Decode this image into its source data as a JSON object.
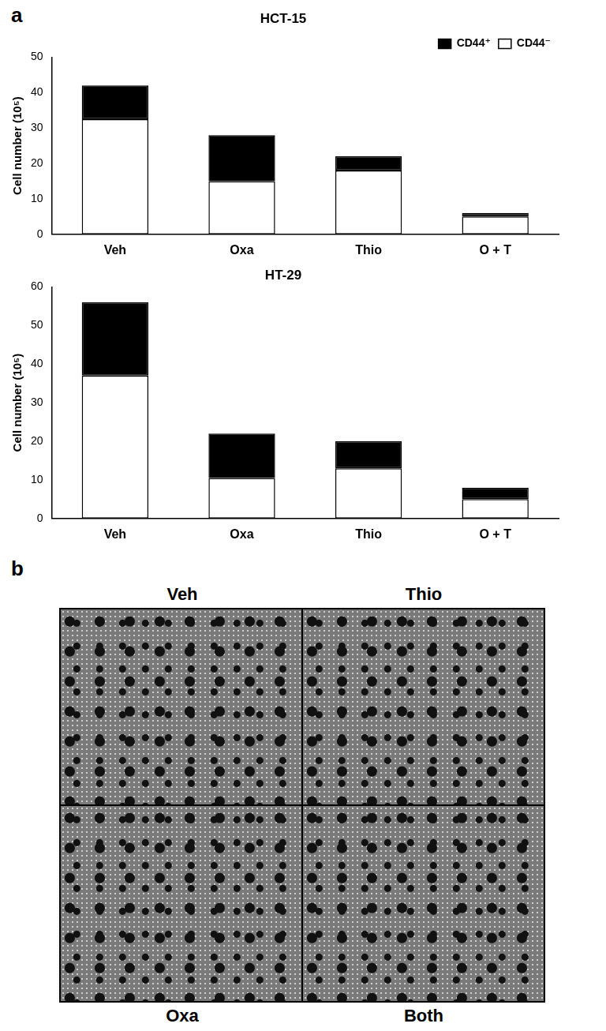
{
  "panel_labels": [
    "a",
    "b"
  ],
  "chart_data": [
    {
      "type": "bar",
      "title": "HCT-15",
      "y_label": "Cell number (10⁵)",
      "categories": [
        "Veh",
        "Oxa",
        "Thio",
        "O + T"
      ],
      "series": [
        {
          "name": "CD44⁻",
          "color": "#ffffff",
          "values": [
            32.5,
            15,
            18,
            5
          ]
        },
        {
          "name": "CD44⁺",
          "color": "#000000",
          "values": [
            9.5,
            13,
            4,
            1
          ]
        }
      ],
      "stacked": true,
      "ylim": [
        0,
        50
      ],
      "yticks": [
        0,
        10,
        20,
        30,
        40,
        50
      ],
      "grid": false,
      "legend": "top-right"
    },
    {
      "type": "bar",
      "title": "HT-29",
      "y_label": "Cell number (10⁵)",
      "categories": [
        "Veh",
        "Oxa",
        "Thio",
        "O + T"
      ],
      "series": [
        {
          "name": "CD44⁻",
          "color": "#ffffff",
          "values": [
            37,
            10.5,
            13,
            5
          ]
        },
        {
          "name": "CD44⁺",
          "color": "#000000",
          "values": [
            19,
            11.5,
            7,
            3
          ]
        }
      ],
      "stacked": true,
      "ylim": [
        0,
        60
      ],
      "yticks": [
        0,
        10,
        20,
        30,
        40,
        50,
        60
      ],
      "grid": false
    }
  ],
  "image_panel": {
    "top_labels": [
      "Veh",
      "Thio"
    ],
    "bottom_labels": [
      "Oxa",
      "Both"
    ]
  }
}
